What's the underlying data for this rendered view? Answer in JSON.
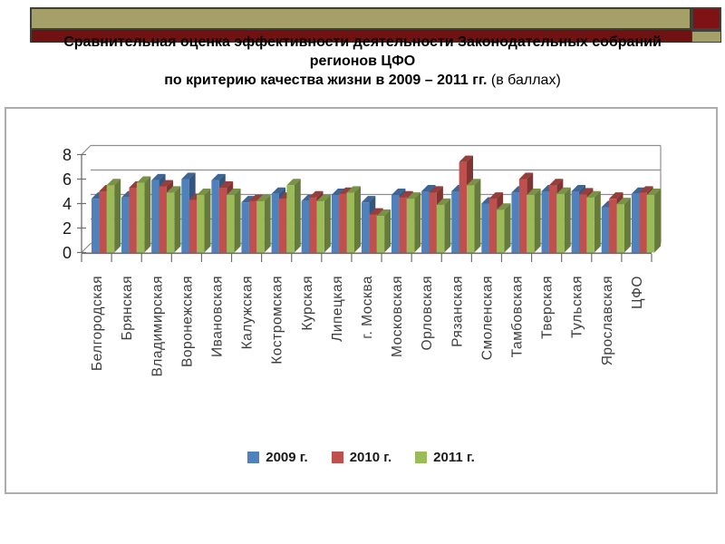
{
  "slide": {
    "title_line1": "Сравнительная оценка эффективности деятельности Законодательных собраний",
    "title_line2": "регионов ЦФО",
    "title_line3_bold": "по критерию качества жизни  в 2009 – 2011 гг.",
    "title_line3_normal": " (в баллах)"
  },
  "decoration": {
    "olive_color": "#a5a06a",
    "stripe_red_color": "#701112",
    "square_red_color": "#7f1214",
    "border_color": "#40403a"
  },
  "chart_data": {
    "type": "bar",
    "style": "3d-clustered-column",
    "title": "",
    "xlabel": "",
    "ylabel": "",
    "ylim": [
      0,
      8
    ],
    "ytick_step": 2,
    "grid": true,
    "legend_position": "bottom",
    "axis_text_color": "#3d3d3d",
    "grid_color": "#8f8f8f",
    "categories": [
      "Белгородская",
      "Брянская",
      "Владимирская",
      "Воронежская",
      "Ивановская",
      "Калужская",
      "Костромская",
      "Курская",
      "Липецкая",
      "г. Москва",
      "Московская",
      "Орловская",
      "Рязанская",
      "Смоленская",
      "Тамбовская",
      "Тверская",
      "Тульская",
      "Ярославская",
      "ЦФО"
    ],
    "series": [
      {
        "name": "2009 г.",
        "color": "#4f81bd",
        "values": [
          4.4,
          4.5,
          5.9,
          6.0,
          5.9,
          4.1,
          4.8,
          4.2,
          4.7,
          4.1,
          4.7,
          5.0,
          5.0,
          4.0,
          4.9,
          5.0,
          5.0,
          3.7,
          4.8
        ]
      },
      {
        "name": "2010 г.",
        "color": "#c0504d",
        "values": [
          5.0,
          5.3,
          5.4,
          4.3,
          5.3,
          4.2,
          4.4,
          4.5,
          4.8,
          3.1,
          4.5,
          4.9,
          7.4,
          4.4,
          6.0,
          5.5,
          4.75,
          4.4,
          4.9
        ]
      },
      {
        "name": "2011 г.",
        "color": "#9bbb59",
        "values": [
          5.5,
          5.7,
          4.9,
          4.7,
          4.7,
          4.2,
          5.5,
          4.2,
          4.9,
          3.0,
          4.4,
          3.9,
          5.5,
          3.5,
          4.7,
          4.8,
          4.5,
          3.95,
          4.7
        ]
      }
    ]
  }
}
